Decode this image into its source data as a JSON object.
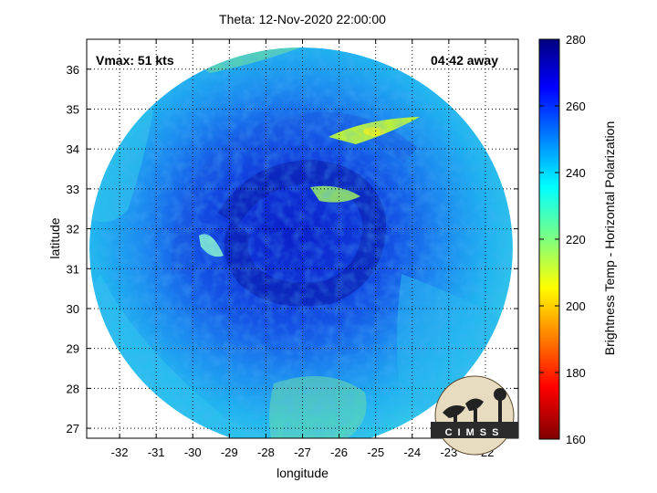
{
  "title": "Theta: 12-Nov-2020 22:00:00",
  "xlabel": "longitude",
  "ylabel": "latitude",
  "annotations": {
    "vmax": "Vmax: 51 kts",
    "time_away": "04:42 away"
  },
  "colorbar": {
    "label": "Brightness Temp - Horizontal Polarization",
    "ticks": [
      "280",
      "260",
      "240",
      "220",
      "200",
      "180",
      "160"
    ]
  },
  "x_ticks": [
    "-32",
    "-31",
    "-30",
    "-29",
    "-28",
    "-27",
    "-26",
    "-25",
    "-24",
    "-23",
    "-22"
  ],
  "y_ticks": [
    "36",
    "35",
    "34",
    "33",
    "32",
    "31",
    "30",
    "29",
    "28",
    "27"
  ],
  "logo": {
    "text": "CIMSS"
  },
  "colors": {
    "background": "#ffffff",
    "outside_swath": "#ffffff",
    "swath_base": "#1aa3f0",
    "cyclone_core": "#0a1fc8",
    "warm_bands": "#41e0b8",
    "cold_spots": "#c8f03a"
  },
  "chart_data": {
    "type": "heatmap",
    "title": "Theta: 12-Nov-2020 22:00:00",
    "xlabel": "longitude",
    "ylabel": "latitude",
    "xlim": [
      -32.9,
      -21.1
    ],
    "ylim": [
      26.75,
      36.75
    ],
    "grid": true,
    "colorbar_range": [
      160,
      280
    ],
    "colorbar_label": "Brightness Temp - Horizontal Polarization",
    "storm_center": {
      "lon": -26.8,
      "lat": 31.6
    },
    "max_wind_kts": 51,
    "values_note_k": {
      "core_min": 250,
      "swath_typical": 240,
      "cold_band_min": 215
    }
  }
}
